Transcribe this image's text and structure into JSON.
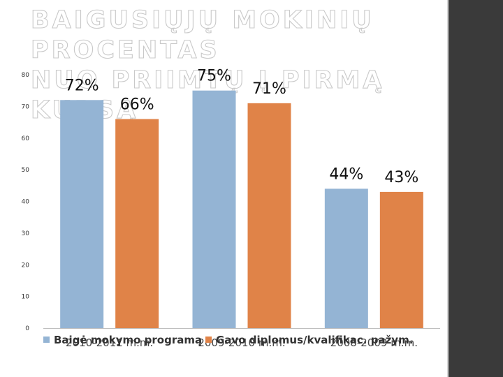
{
  "slide": {
    "title_line1": "BAIGUSIŲJŲ MOKINIŲ PROCENTAS",
    "title_line2": "NUO PRIIMTŲ Į PIRMĄ KURSĄ"
  },
  "chart_data": {
    "type": "bar",
    "categories": [
      "2010-2011 m.m.",
      "2009-2010 m.m.",
      "2008-2009 m.m."
    ],
    "series": [
      {
        "name": "Baigė mokymo programą",
        "values": [
          72,
          75,
          44
        ],
        "labels": [
          "72%",
          "75%",
          "44%"
        ],
        "color": "#94b4d4"
      },
      {
        "name": "Gavo diplomus/kvalifikac. pažym.",
        "values": [
          66,
          71,
          43
        ],
        "labels": [
          "66%",
          "71%",
          "43%"
        ],
        "color": "#e08348"
      }
    ],
    "ylim": [
      0,
      80
    ],
    "yticks": [
      0,
      10,
      20,
      30,
      40,
      50,
      60,
      70,
      80
    ],
    "grid": false,
    "legend": "bottom",
    "title": "",
    "xlabel": "",
    "ylabel": ""
  }
}
